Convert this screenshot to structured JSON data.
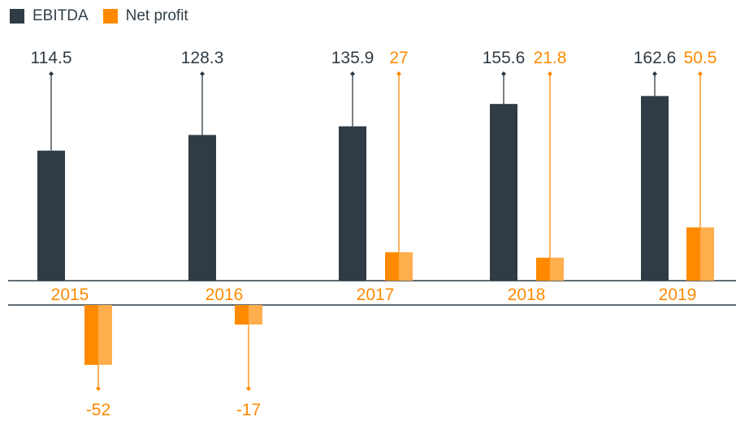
{
  "legend": [
    {
      "label": "EBITDA",
      "color": "#2f3b45"
    },
    {
      "label": "Net profit",
      "color": "#ff8a00"
    }
  ],
  "colors": {
    "ebitda": "#2f3b45",
    "net_profit": "#ff8a00",
    "net_profit_light": "#ffae4d",
    "axis": "#2f3b45"
  },
  "chart_data": {
    "type": "bar",
    "categories": [
      "2015",
      "2016",
      "2017",
      "2018",
      "2019"
    ],
    "series": [
      {
        "name": "EBITDA",
        "values": [
          114.5,
          128.3,
          135.9,
          155.6,
          162.6
        ]
      },
      {
        "name": "Net profit",
        "values": [
          -52,
          -17,
          27,
          21.8,
          50.5
        ]
      }
    ],
    "data_labels": {
      "EBITDA": [
        "114.5",
        "128.3",
        "135.9",
        "155.6",
        "162.6"
      ],
      "Net profit": [
        "-52",
        "-17",
        "27",
        "21.8",
        "50.5"
      ]
    },
    "legend": "top-left",
    "grid": false
  }
}
